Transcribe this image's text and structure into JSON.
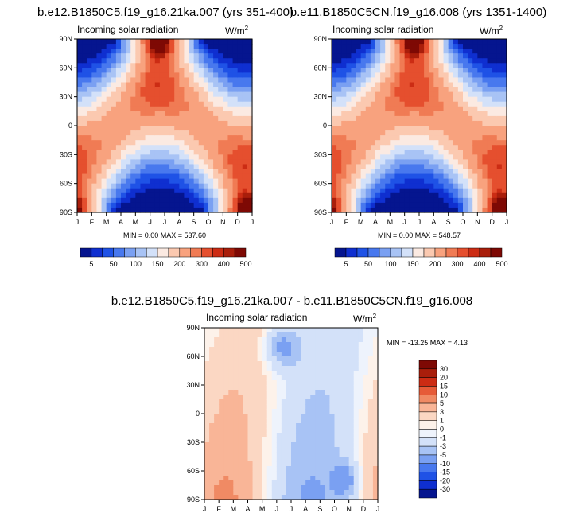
{
  "colors": {
    "seq": [
      "#05158f",
      "#0f2fd0",
      "#1f52e6",
      "#4878ee",
      "#7aa0f2",
      "#a8c3f5",
      "#d3e1f9",
      "#fbeae2",
      "#fbc9b0",
      "#f8a27e",
      "#f07b54",
      "#e54f2e",
      "#cc2c14",
      "#a91e0b",
      "#7e0904"
    ],
    "div": [
      "#05158f",
      "#0f2fd0",
      "#1f52e6",
      "#4878ee",
      "#7aa0f2",
      "#a8c3f5",
      "#d3e1f9",
      "#eef3fc",
      "#fdf2ea",
      "#fbd7c3",
      "#f9b597",
      "#f08a64",
      "#e65b38",
      "#cc2c14",
      "#a91e0b",
      "#7e0904"
    ]
  },
  "top_left": {
    "title": "b.e12.B1850C5.f19_g16.21ka.007 (yrs 351-400)",
    "left_label": "Incoming solar radiation",
    "units": "W/m",
    "units_sup": "2",
    "stats": "MIN =   0.00 MAX = 537.60"
  },
  "top_right": {
    "title": "b.e11.B1850C5CN.f19_g16.008 (yrs 1351-1400)",
    "left_label": "Incoming solar radiation",
    "units": "W/m",
    "units_sup": "2",
    "stats": "MIN =   0.00 MAX = 548.57"
  },
  "bottom": {
    "title": "b.e12.B1850C5.f19_g16.21ka.007 - b.e11.B1850C5CN.f19_g16.008",
    "left_label": "Incoming solar radiation",
    "units": "W/m",
    "units_sup": "2",
    "stats": "MIN = -13.25 MAX =   4.13"
  },
  "chart_data": [
    {
      "type": "heatmap",
      "title": "b.e12.B1850C5.f19_g16.21ka.007 (yrs 351-400)",
      "variable": "Incoming solar radiation",
      "units": "W/m2",
      "x_ticks": [
        "J",
        "F",
        "M",
        "A",
        "M",
        "J",
        "J",
        "A",
        "S",
        "O",
        "N",
        "D",
        "J"
      ],
      "y_ticks": [
        "90N",
        "60N",
        "30N",
        "0",
        "30S",
        "60S",
        "90S"
      ],
      "min": 0.0,
      "max": 537.6,
      "colorbar_levels": [
        "5",
        "50",
        "100",
        "150",
        "200",
        "300",
        "400",
        "500"
      ],
      "colorbar_orientation": "horizontal"
    },
    {
      "type": "heatmap",
      "title": "b.e11.B1850C5CN.f19_g16.008 (yrs 1351-1400)",
      "variable": "Incoming solar radiation",
      "units": "W/m2",
      "x_ticks": [
        "J",
        "F",
        "M",
        "A",
        "M",
        "J",
        "J",
        "A",
        "S",
        "O",
        "N",
        "D",
        "J"
      ],
      "y_ticks": [
        "90N",
        "60N",
        "30N",
        "0",
        "30S",
        "60S",
        "90S"
      ],
      "min": 0.0,
      "max": 548.57,
      "colorbar_levels": [
        "5",
        "50",
        "100",
        "150",
        "200",
        "300",
        "400",
        "500"
      ],
      "colorbar_orientation": "horizontal"
    },
    {
      "type": "heatmap",
      "title": "b.e12.B1850C5.f19_g16.21ka.007 - b.e11.B1850C5CN.f19_g16.008",
      "variable": "Incoming solar radiation",
      "units": "W/m2",
      "x_ticks": [
        "J",
        "F",
        "M",
        "A",
        "M",
        "J",
        "J",
        "A",
        "S",
        "O",
        "N",
        "D",
        "J"
      ],
      "y_ticks": [
        "90N",
        "60N",
        "30N",
        "0",
        "30S",
        "60S",
        "90S"
      ],
      "min": -13.25,
      "max": 4.13,
      "colorbar_levels": [
        "30",
        "20",
        "15",
        "10",
        "5",
        "3",
        "1",
        "0",
        "-1",
        "-3",
        "-5",
        "-10",
        "-15",
        "-20",
        "-30"
      ],
      "colorbar_orientation": "vertical"
    }
  ]
}
